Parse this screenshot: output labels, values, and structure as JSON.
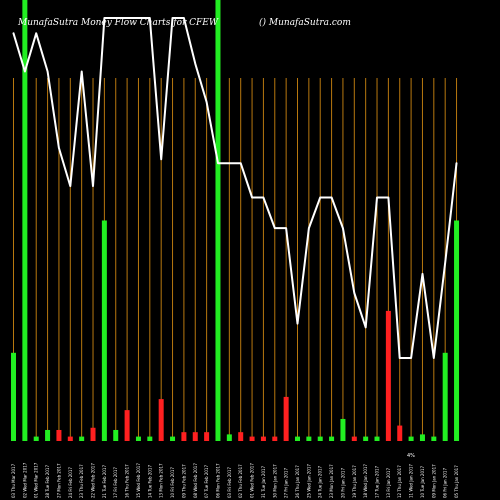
{
  "header": {
    "left": "MunafaSutra  Money Flow  Charts for CFEW",
    "right": "() MunafaSutra.com"
  },
  "colors": {
    "background": "#000000",
    "grid": "#b8780f",
    "up": "#22ee22",
    "down": "#ff2020",
    "line": "#ffffff",
    "text": "#ffffff"
  },
  "chart_data": {
    "type": "bar",
    "title": "MunafaSutra  Money Flow  Charts for CFEW",
    "xlabel": "",
    "ylabel": "",
    "ylim": [
      0,
      100
    ],
    "categories": [
      "03 Thu Mar 2017",
      "02 Wed Mar 2017",
      "01 Wed Mar 2017",
      "28 Tue Feb 2017",
      "27 Mon Feb 2017",
      "24 Fri Feb 2017",
      "23 Thu Feb 2017",
      "22 Wed Feb 2017",
      "21 Tue Feb 2017",
      "17 Fri Feb 2017",
      "16 Thu Feb 2017",
      "15 Wed Feb 2017",
      "14 Tue Feb 2017",
      "13 Mon Feb 2017",
      "10 Fri Feb 2017",
      "09 Thu Feb 2017",
      "08 Wed Feb 2017",
      "07 Tue Feb 2017",
      "06 Mon Feb 2017",
      "03 Fri Feb 2017",
      "02 Thu Feb 2017",
      "01 Wed Feb 2017",
      "31 Tue Jan 2017",
      "30 Mon Jan 2017",
      "27 Fri Jan 2017",
      "26 Thu Jan 2017",
      "25 Wed Jan 2017",
      "24 Tue Jan 2017",
      "23 Mon Jan 2017",
      "20 Fri Jan 2017",
      "19 Thu Jan 2017",
      "18 Wed Jan 2017",
      "17 Tue Jan 2017",
      "13 Fri Jan 2017",
      "12 Thu Jan 2017",
      "11 Wed Jan 2017",
      "10 Tue Jan 2017",
      "09 Mon Jan 2017",
      "06 Fri Jan 2017",
      "05 Thu Jan 2017"
    ],
    "series": [
      {
        "kind": "volume",
        "values": [
          20,
          100,
          1,
          2.5,
          2.5,
          1,
          1,
          3,
          50,
          2.5,
          7,
          1,
          1,
          9.5,
          1,
          2,
          2,
          2,
          100,
          1.5,
          2,
          1,
          1,
          1,
          10,
          1,
          1,
          1,
          1,
          5,
          1,
          1,
          1,
          29.5,
          3.5,
          1,
          1.5,
          1,
          20,
          50
        ],
        "direction": [
          "up",
          "up",
          "up",
          "up",
          "down",
          "down",
          "up",
          "down",
          "up",
          "up",
          "down",
          "up",
          "up",
          "down",
          "up",
          "down",
          "down",
          "down",
          "up",
          "up",
          "down",
          "down",
          "down",
          "down",
          "down",
          "up",
          "up",
          "up",
          "up",
          "up",
          "down",
          "up",
          "up",
          "down",
          "down",
          "up",
          "up",
          "up",
          "up",
          "up"
        ]
      },
      {
        "kind": "money-flow line",
        "values": [
          96,
          86,
          96,
          86,
          66,
          56,
          86,
          56,
          100,
          100,
          100,
          100,
          100,
          63,
          100,
          100,
          88,
          78,
          62,
          62,
          62,
          53,
          53,
          45,
          45,
          20,
          45,
          53,
          53,
          45,
          28,
          19,
          53,
          53,
          11,
          11,
          33,
          11,
          36,
          62
        ]
      }
    ],
    "annotations": [
      "4%"
    ]
  }
}
